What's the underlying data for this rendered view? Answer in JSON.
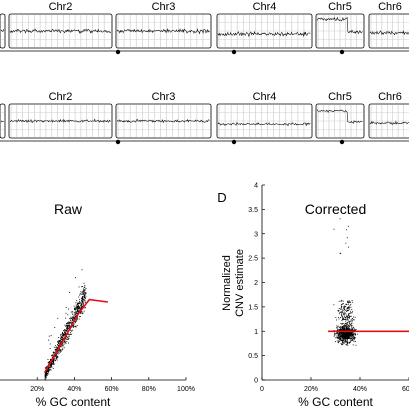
{
  "chart_data": [
    {
      "type": "genome-track",
      "row": "top",
      "chromosomes": [
        "Chr2",
        "Chr3",
        "Chr4",
        "Chr5",
        "Chr6"
      ]
    },
    {
      "type": "genome-track",
      "row": "middle",
      "chromosomes": [
        "Chr2",
        "Chr3",
        "Chr4",
        "Chr5",
        "Chr6"
      ]
    },
    {
      "type": "scatter",
      "title": "Raw",
      "xlabel": "% GC content",
      "x_tick_labels": [
        "20%",
        "40%",
        "60%",
        "80%",
        "100%"
      ],
      "x_ticks": [
        20,
        40,
        60,
        80,
        100
      ],
      "xlim": [
        0,
        100
      ],
      "ylim": [
        0,
        4
      ],
      "points_region": {
        "x": [
          22,
          46
        ],
        "y": [
          0.1,
          2.6
        ]
      },
      "fit_line": {
        "name": "",
        "color": "#e01010",
        "x": [
          24,
          30,
          36,
          42,
          48,
          58
        ],
        "y": [
          0.15,
          0.55,
          0.95,
          1.35,
          1.65,
          1.6
        ]
      }
    },
    {
      "type": "scatter",
      "panel_label": "D",
      "title": "Corrected",
      "xlabel": "% GC content",
      "ylabel_lines": [
        "Normalized",
        "CNV estimate"
      ],
      "y_ticks": [
        0,
        0.5,
        1,
        1.5,
        2,
        2.5,
        3,
        3.5,
        4
      ],
      "y_tick_labels": [
        "0",
        "0.5",
        "1",
        "1.5",
        "2",
        "2.5",
        "3",
        "3.5",
        "4"
      ],
      "x_ticks": [
        0,
        20,
        40,
        60
      ],
      "x_tick_labels": [
        "0",
        "20%",
        "40%",
        "60%"
      ],
      "xlim": [
        0,
        60
      ],
      "ylim": [
        0,
        4
      ],
      "points_region": {
        "x": [
          25,
          45
        ],
        "y": [
          0.55,
          1.6
        ]
      },
      "fit_line": {
        "name": "",
        "color": "#e01010",
        "x": [
          27,
          60
        ],
        "y": [
          1.0,
          1.0
        ]
      }
    }
  ],
  "colors": {
    "points": "#000000",
    "fit": "#e01010",
    "track_bg": "#d8d8d8"
  }
}
